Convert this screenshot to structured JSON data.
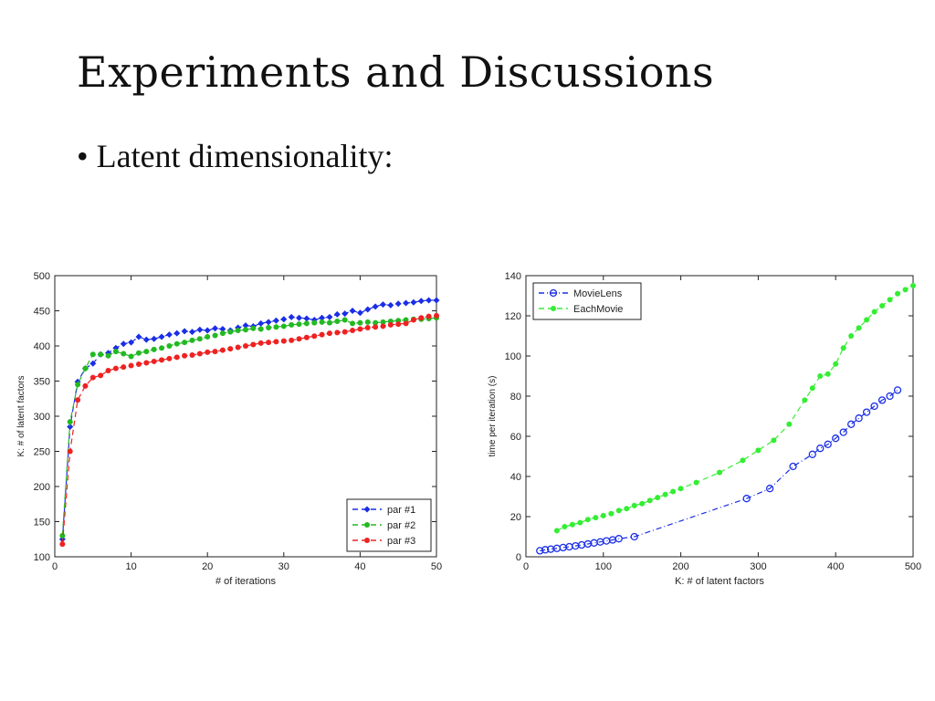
{
  "slide": {
    "title": "Experiments and Discussions",
    "bullet": "• Latent dimensionality:"
  },
  "colors": {
    "blue": "#1a2ee6",
    "green": "#22b922",
    "red": "#ee2222",
    "bright_green": "#33ee33"
  },
  "chart_data": [
    {
      "type": "line",
      "xlabel": "# of iterations",
      "ylabel": "K: # of latent factors",
      "xlim": [
        0,
        50
      ],
      "ylim": [
        100,
        500
      ],
      "xticks": [
        0,
        10,
        20,
        30,
        40,
        50
      ],
      "yticks": [
        100,
        150,
        200,
        250,
        300,
        350,
        400,
        450,
        500
      ],
      "legend_position": "bottom-right",
      "grid": false,
      "series": [
        {
          "name": "par #1",
          "color": "#1a2ee6",
          "marker": "diamond",
          "dash": "dashed",
          "x": [
            1,
            2,
            3,
            4,
            5,
            6,
            7,
            8,
            9,
            10,
            11,
            12,
            13,
            14,
            15,
            16,
            17,
            18,
            19,
            20,
            21,
            22,
            23,
            24,
            25,
            26,
            27,
            28,
            29,
            30,
            31,
            32,
            33,
            34,
            35,
            36,
            37,
            38,
            39,
            40,
            41,
            42,
            43,
            44,
            45,
            46,
            47,
            48,
            49,
            50
          ],
          "values": [
            125,
            285,
            349,
            368,
            375,
            388,
            390,
            397,
            403,
            405,
            413,
            409,
            410,
            413,
            416,
            418,
            421,
            420,
            423,
            422,
            425,
            424,
            422,
            426,
            429,
            428,
            432,
            434,
            436,
            438,
            441,
            440,
            439,
            437,
            440,
            441,
            445,
            446,
            450,
            447,
            452,
            456,
            459,
            458,
            460,
            461,
            462,
            464,
            465,
            465
          ]
        },
        {
          "name": "par #2",
          "color": "#22b922",
          "marker": "circle",
          "dash": "dashed",
          "x": [
            1,
            2,
            3,
            4,
            5,
            6,
            7,
            8,
            9,
            10,
            11,
            12,
            13,
            14,
            15,
            16,
            17,
            18,
            19,
            20,
            21,
            22,
            23,
            24,
            25,
            26,
            27,
            28,
            29,
            30,
            31,
            32,
            33,
            34,
            35,
            36,
            37,
            38,
            39,
            40,
            41,
            42,
            43,
            44,
            45,
            46,
            47,
            48,
            49,
            50
          ],
          "values": [
            130,
            292,
            345,
            368,
            388,
            388,
            386,
            392,
            389,
            385,
            390,
            392,
            395,
            397,
            400,
            403,
            405,
            408,
            410,
            413,
            415,
            418,
            420,
            422,
            423,
            425,
            424,
            426,
            427,
            428,
            430,
            431,
            432,
            433,
            434,
            433,
            435,
            437,
            432,
            433,
            434,
            433,
            434,
            435,
            436,
            437,
            438,
            438,
            439,
            440
          ]
        },
        {
          "name": "par #3",
          "color": "#ee2222",
          "marker": "circle",
          "dash": "dashed",
          "x": [
            1,
            2,
            3,
            4,
            5,
            6,
            7,
            8,
            9,
            10,
            11,
            12,
            13,
            14,
            15,
            16,
            17,
            18,
            19,
            20,
            21,
            22,
            23,
            24,
            25,
            26,
            27,
            28,
            29,
            30,
            31,
            32,
            33,
            34,
            35,
            36,
            37,
            38,
            39,
            40,
            41,
            42,
            43,
            44,
            45,
            46,
            47,
            48,
            49,
            50
          ],
          "values": [
            118,
            250,
            323,
            343,
            355,
            358,
            365,
            368,
            370,
            372,
            374,
            376,
            378,
            380,
            382,
            384,
            386,
            387,
            389,
            391,
            392,
            394,
            396,
            398,
            400,
            402,
            404,
            405,
            406,
            407,
            408,
            410,
            412,
            414,
            416,
            418,
            419,
            420,
            422,
            424,
            426,
            427,
            428,
            430,
            431,
            432,
            437,
            440,
            442,
            443
          ]
        }
      ]
    },
    {
      "type": "scatter",
      "xlabel": "K: # of latent factors",
      "ylabel": "time per iteration (s)",
      "xlim": [
        0,
        500
      ],
      "ylim": [
        0,
        140
      ],
      "xticks": [
        0,
        100,
        200,
        300,
        400,
        500
      ],
      "yticks": [
        0,
        20,
        40,
        60,
        80,
        100,
        120,
        140
      ],
      "legend_position": "top-left",
      "grid": false,
      "series": [
        {
          "name": "MovieLens",
          "color": "#1a2ee6",
          "marker": "open-circle",
          "dash": "dashdot",
          "x": [
            18,
            25,
            32,
            40,
            48,
            56,
            64,
            72,
            80,
            88,
            96,
            104,
            112,
            120,
            140,
            285,
            315,
            345,
            370,
            380,
            390,
            400,
            410,
            420,
            430,
            440,
            450,
            460,
            470,
            480
          ],
          "values": [
            3,
            3.5,
            3.8,
            4.2,
            4.6,
            5,
            5.4,
            5.9,
            6.4,
            6.9,
            7.4,
            7.9,
            8.4,
            9,
            10,
            29,
            34,
            45,
            51,
            54,
            56,
            59,
            62,
            66,
            69,
            72,
            75,
            78,
            80,
            83
          ]
        },
        {
          "name": "EachMovie",
          "color": "#33ee33",
          "marker": "filled-dot",
          "dash": "dashed",
          "x": [
            40,
            50,
            60,
            70,
            80,
            90,
            100,
            110,
            120,
            130,
            140,
            150,
            160,
            170,
            180,
            190,
            200,
            220,
            250,
            280,
            300,
            320,
            340,
            360,
            370,
            380,
            390,
            400,
            410,
            420,
            430,
            440,
            450,
            460,
            470,
            480,
            490,
            500
          ],
          "values": [
            13,
            15,
            16,
            17,
            18.5,
            19.5,
            20.5,
            21.5,
            23,
            24,
            25.5,
            26.5,
            28,
            29.5,
            31,
            32.5,
            34,
            37,
            42,
            48,
            53,
            58,
            66,
            78,
            84,
            90,
            91,
            96,
            104,
            110,
            114,
            118,
            122,
            125,
            128,
            131,
            133,
            135
          ]
        }
      ]
    }
  ]
}
